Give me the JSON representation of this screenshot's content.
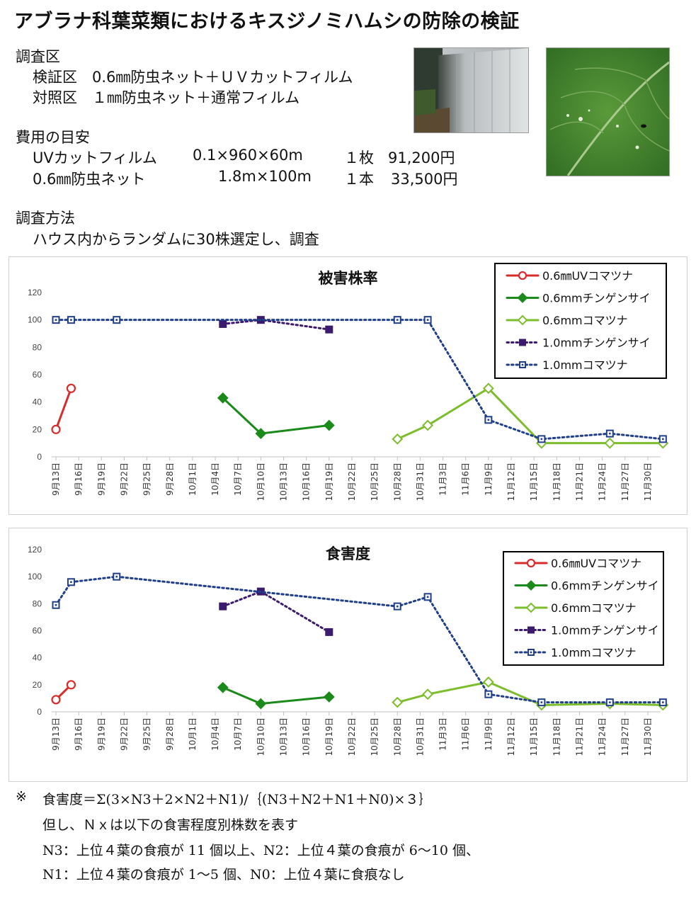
{
  "header": {
    "title": "アブラナ科葉菜類におけるキスジノミハムシの防除の検証"
  },
  "survey_area": {
    "heading": "調査区",
    "lines": [
      "検証区　0.6㎜防虫ネット＋ＵＶカットフィルム",
      "対照区　１㎜防虫ネット＋通常フィルム"
    ]
  },
  "cost": {
    "heading": "費用の目安",
    "items": [
      {
        "name": "UVカットフィルム",
        "spec": "0.1×960×60m",
        "qty": "１枚",
        "price": "91,200円"
      },
      {
        "name": "0.6㎜防虫ネット",
        "spec": "1.8m×100m",
        "qty": "１本",
        "price": "33,500円"
      }
    ]
  },
  "method": {
    "heading": "調査方法",
    "text": "ハウス内からランダムに30株選定し、調査"
  },
  "photos": [
    {
      "icon": "greenhouse-photo"
    },
    {
      "icon": "damaged-leaf-photo"
    }
  ],
  "chart_data": [
    {
      "type": "line",
      "title": "被害株率",
      "ylim": [
        0,
        120
      ],
      "yticks": [
        0,
        20,
        40,
        60,
        80,
        100,
        120
      ],
      "x_ticks": [
        "9月13日",
        "9月16日",
        "9月19日",
        "9月22日",
        "9月25日",
        "9月28日",
        "10月1日",
        "10月4日",
        "10月7日",
        "10月10日",
        "10月13日",
        "10月16日",
        "10月19日",
        "10月22日",
        "10月25日",
        "10月28日",
        "10月31日",
        "11月3日",
        "11月6日",
        "11月9日",
        "11月12日",
        "11月15日",
        "11月18日",
        "11月21日",
        "11月24日",
        "11月27日",
        "11月30日"
      ],
      "legend_position": "top-right",
      "grid": false,
      "series": [
        {
          "name": "0.6㎜UVコマツナ",
          "color": "#d62c2c",
          "style": "solid",
          "marker": "circle-open",
          "points": [
            [
              "9月13日",
              20
            ],
            [
              "9月15日",
              50
            ]
          ]
        },
        {
          "name": "0.6mmチンゲンサイ",
          "color": "#1a8a1a",
          "style": "solid",
          "marker": "diamond-filled",
          "points": [
            [
              "10月5日",
              43
            ],
            [
              "10月10日",
              17
            ],
            [
              "10月19日",
              23
            ]
          ]
        },
        {
          "name": "0.6mmコマツナ",
          "color": "#7cbd2c",
          "style": "solid",
          "marker": "diamond-open",
          "points": [
            [
              "10月28日",
              13
            ],
            [
              "11月1日",
              23
            ],
            [
              "11月9日",
              50
            ],
            [
              "11月16日",
              10
            ],
            [
              "11月25日",
              10
            ],
            [
              "12月2日",
              10
            ]
          ]
        },
        {
          "name": "1.0mmチンゲンサイ",
          "color": "#3c1a6e",
          "style": "dotted",
          "marker": "square-filled",
          "points": [
            [
              "10月5日",
              97
            ],
            [
              "10月10日",
              100
            ],
            [
              "10月19日",
              93
            ]
          ]
        },
        {
          "name": "1.0mmコマツナ",
          "color": "#1f3f8a",
          "style": "dotted",
          "marker": "square-open",
          "points": [
            [
              "9月13日",
              100
            ],
            [
              "9月15日",
              100
            ],
            [
              "9月21日",
              100
            ],
            [
              "10月28日",
              100
            ],
            [
              "11月1日",
              100
            ],
            [
              "11月9日",
              27
            ],
            [
              "11月16日",
              13
            ],
            [
              "11月25日",
              17
            ],
            [
              "12月2日",
              13
            ]
          ]
        }
      ]
    },
    {
      "type": "line",
      "title": "食害度",
      "ylim": [
        0,
        120
      ],
      "yticks": [
        0,
        20,
        40,
        60,
        80,
        100,
        120
      ],
      "x_ticks": [
        "9月13日",
        "9月16日",
        "9月19日",
        "9月22日",
        "9月25日",
        "9月28日",
        "10月1日",
        "10月4日",
        "10月7日",
        "10月10日",
        "10月13日",
        "10月16日",
        "10月19日",
        "10月22日",
        "10月25日",
        "10月28日",
        "10月31日",
        "11月3日",
        "11月6日",
        "11月9日",
        "11月12日",
        "11月15日",
        "11月18日",
        "11月21日",
        "11月24日",
        "11月27日",
        "11月30日"
      ],
      "legend_position": "top-right",
      "grid": false,
      "series": [
        {
          "name": "0.6㎜UVコマツナ",
          "color": "#d62c2c",
          "style": "solid",
          "marker": "circle-open",
          "points": [
            [
              "9月13日",
              9
            ],
            [
              "9月15日",
              20
            ]
          ]
        },
        {
          "name": "0.6mmチンゲンサイ",
          "color": "#1a8a1a",
          "style": "solid",
          "marker": "diamond-filled",
          "points": [
            [
              "10月5日",
              18
            ],
            [
              "10月10日",
              6
            ],
            [
              "10月19日",
              11
            ]
          ]
        },
        {
          "name": "0.6mmコマツナ",
          "color": "#7cbd2c",
          "style": "solid",
          "marker": "diamond-open",
          "points": [
            [
              "10月28日",
              7
            ],
            [
              "11月1日",
              13
            ],
            [
              "11月9日",
              22
            ],
            [
              "11月16日",
              5
            ],
            [
              "11月25日",
              6
            ],
            [
              "12月2日",
              5
            ]
          ]
        },
        {
          "name": "1.0mmチンゲンサイ",
          "color": "#3c1a6e",
          "style": "dotted",
          "marker": "square-filled",
          "points": [
            [
              "10月5日",
              78
            ],
            [
              "10月10日",
              89
            ],
            [
              "10月19日",
              59
            ]
          ]
        },
        {
          "name": "1.0mmコマツナ",
          "color": "#1f3f8a",
          "style": "dotted",
          "marker": "square-open",
          "points": [
            [
              "9月13日",
              79
            ],
            [
              "9月15日",
              96
            ],
            [
              "9月21日",
              100
            ],
            [
              "10月28日",
              78
            ],
            [
              "11月1日",
              85
            ],
            [
              "11月9日",
              13
            ],
            [
              "11月16日",
              7
            ],
            [
              "11月25日",
              7
            ],
            [
              "12月2日",
              7
            ]
          ]
        }
      ]
    }
  ],
  "footnote": {
    "mark": "※",
    "formula": "食害度＝Σ(3×N3＋2×N2＋N1)/｛(N3＋N2＋N1＋N0)×３｝",
    "lines": [
      "但し、Ｎｘは以下の食害程度別株数を表す",
      "N3：上位４葉の食痕が 11 個以上、N2：上位４葉の食痕が 6～10 個、",
      "N1：上位４葉の食痕が 1～5 個、N0：上位４葉に食痕なし"
    ]
  }
}
